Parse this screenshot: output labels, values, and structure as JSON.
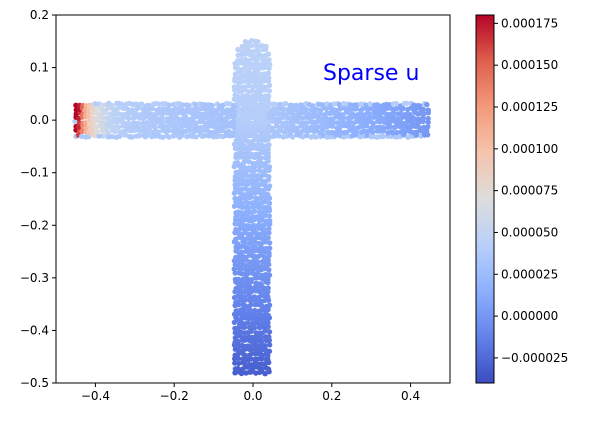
{
  "chart_data": {
    "type": "scatter",
    "title": "",
    "annotation": {
      "text": "Sparse u",
      "color": "#0000ff"
    },
    "xlabel": "",
    "ylabel": "",
    "xlim": [
      -0.5,
      0.5
    ],
    "ylim": [
      -0.5,
      0.2
    ],
    "xticks": [
      "−0.4",
      "−0.2",
      "0.0",
      "0.2",
      "0.4"
    ],
    "xtick_values": [
      -0.4,
      -0.2,
      0.0,
      0.2,
      0.4
    ],
    "yticks": [
      "0.2",
      "0.1",
      "0.0",
      "−0.1",
      "−0.2",
      "−0.3",
      "−0.4",
      "−0.5"
    ],
    "ytick_values": [
      0.2,
      0.1,
      0.0,
      -0.1,
      -0.2,
      -0.3,
      -0.4,
      -0.5
    ],
    "grid": false,
    "colormap": "coolwarm",
    "colorbar": {
      "vmin": -4e-05,
      "vmax": 0.00018,
      "tick_values": [
        -2.5e-05,
        0.0,
        2.5e-05,
        5e-05,
        7.5e-05,
        0.0001,
        0.000125,
        0.00015,
        0.000175
      ],
      "tick_labels": [
        "−0.000025",
        "0.000000",
        "0.000025",
        "0.000050",
        "0.000075",
        "0.000100",
        "0.000125",
        "0.000150",
        "0.000175"
      ]
    },
    "domain_shape": {
      "horizontal_bar": {
        "x": [
          -0.45,
          0.45
        ],
        "y": [
          -0.03,
          0.03
        ]
      },
      "vertical_bar": {
        "x": [
          -0.045,
          0.045
        ],
        "y": [
          -0.48,
          0.155
        ]
      }
    },
    "field_samples": [
      {
        "x": -0.44,
        "y": 0.02,
        "u": 0.00018
      },
      {
        "x": -0.44,
        "y": -0.02,
        "u": 0.00014
      },
      {
        "x": -0.4,
        "y": 0.0,
        "u": 0.0001
      },
      {
        "x": -0.35,
        "y": 0.0,
        "u": 6e-05
      },
      {
        "x": -0.25,
        "y": 0.0,
        "u": 4.5e-05
      },
      {
        "x": 0.0,
        "y": 0.12,
        "u": 4e-05
      },
      {
        "x": 0.0,
        "y": 0.0,
        "u": 4e-05
      },
      {
        "x": 0.2,
        "y": 0.0,
        "u": 2e-05
      },
      {
        "x": 0.43,
        "y": 0.0,
        "u": 0.0
      },
      {
        "x": 0.0,
        "y": -0.2,
        "u": 1e-05
      },
      {
        "x": 0.0,
        "y": -0.35,
        "u": -1e-05
      },
      {
        "x": 0.0,
        "y": -0.47,
        "u": -3e-05
      }
    ]
  }
}
